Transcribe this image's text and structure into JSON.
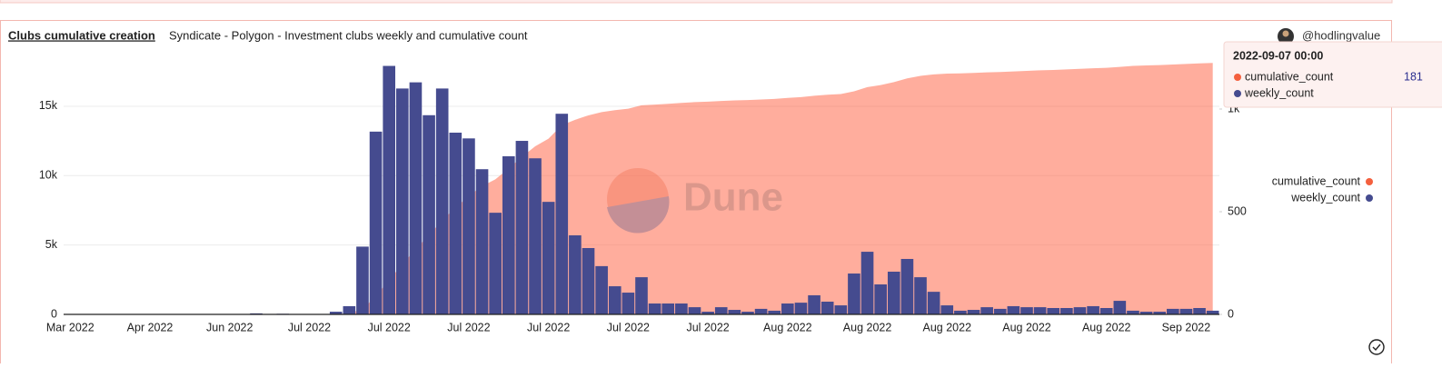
{
  "header": {
    "title": "Clubs cumulative creation",
    "subtitle": "Syndicate - Polygon - Investment clubs weekly and cumulative count",
    "author": "@hodlingvalue"
  },
  "chart_data": {
    "type": "combo",
    "categories": [
      "Mar 2022",
      null,
      null,
      null,
      null,
      null,
      "Apr 2022",
      null,
      null,
      null,
      null,
      null,
      "Jun 2022",
      null,
      null,
      null,
      null,
      null,
      "Jul 2022",
      null,
      null,
      null,
      null,
      null,
      "Jul 2022",
      null,
      null,
      null,
      null,
      null,
      "Jul 2022",
      null,
      null,
      null,
      null,
      null,
      "Jul 2022",
      null,
      null,
      null,
      null,
      null,
      "Jul 2022",
      null,
      null,
      null,
      null,
      null,
      "Jul 2022",
      null,
      null,
      null,
      null,
      null,
      "Aug 2022",
      null,
      null,
      null,
      null,
      null,
      "Aug 2022",
      null,
      null,
      null,
      null,
      null,
      "Aug 2022",
      null,
      null,
      null,
      null,
      null,
      "Aug 2022",
      null,
      null,
      null,
      null,
      null,
      "Aug 2022",
      null,
      null,
      null,
      null,
      null,
      "Sep 2022",
      null,
      null
    ],
    "series": [
      {
        "name": "cumulative_count",
        "kind": "area",
        "color": "#ff6a4d",
        "values": [
          0,
          0,
          0,
          0,
          0,
          0,
          0,
          0,
          0,
          0,
          0,
          0,
          0,
          0,
          5,
          5,
          8,
          8,
          10,
          10,
          23,
          63,
          393,
          1283,
          2493,
          3593,
          4723,
          5693,
          6793,
          7678,
          8535,
          9242,
          9737,
          10507,
          11352,
          12112,
          12660,
          13637,
          14022,
          14345,
          14580,
          14717,
          14823,
          15070,
          15120,
          15180,
          15240,
          15300,
          15330,
          15380,
          15420,
          15450,
          15490,
          15530,
          15600,
          15660,
          15760,
          15830,
          15880,
          16080,
          16380,
          16530,
          16740,
          17010,
          17190,
          17300,
          17350,
          17370,
          17400,
          17440,
          17470,
          17510,
          17550,
          17590,
          17620,
          17660,
          17700,
          17740,
          17770,
          17840,
          17910,
          17940,
          17970,
          18010,
          18050,
          18090,
          18120
        ]
      },
      {
        "name": "weekly_count",
        "kind": "bar",
        "axis": "y2",
        "color": "#454b8f",
        "values": [
          0,
          0,
          0,
          0,
          1,
          0,
          1,
          0,
          2,
          1,
          0,
          1,
          2,
          1,
          5,
          1,
          3,
          1,
          2,
          1,
          13,
          40,
          330,
          890,
          1210,
          1100,
          1130,
          970,
          1100,
          885,
          857,
          707,
          495,
          770,
          845,
          760,
          548,
          977,
          385,
          323,
          235,
          137,
          106,
          181,
          53,
          53,
          53,
          35,
          13,
          35,
          22,
          13,
          27,
          18,
          53,
          57,
          93,
          62,
          44,
          199,
          305,
          146,
          208,
          270,
          181,
          110,
          44,
          18,
          22,
          35,
          27,
          40,
          35,
          35,
          31,
          31,
          35,
          40,
          31,
          66,
          18,
          13,
          13,
          27,
          27,
          31,
          18
        ]
      }
    ],
    "ylim": [
      0,
      18500
    ],
    "yticks": [
      0,
      {
        "value": 5000,
        "label": "5k"
      },
      {
        "value": 10000,
        "label": "10k"
      },
      {
        "value": 15000,
        "label": "15k"
      }
    ],
    "y2lim": [
      0,
      1250
    ],
    "y2ticks": [
      0,
      500,
      {
        "value": 1000,
        "label": "1k"
      }
    ],
    "grid": true,
    "legend": "right",
    "watermark": "Dune",
    "tooltip": {
      "title": "2022-09-07 00:00",
      "rows": [
        {
          "name": "cumulative_count",
          "value": "181"
        },
        {
          "name": "weekly_count"
        }
      ]
    }
  }
}
